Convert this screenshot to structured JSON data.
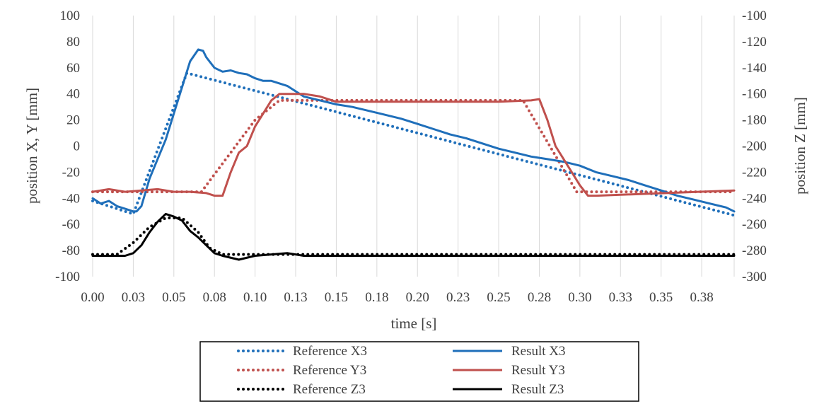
{
  "chart_data": {
    "type": "line",
    "xlabel": "time [s]",
    "ylabel_left": "position X, Y [mm]",
    "ylabel_right": "position Z [mm]",
    "xlim": [
      0,
      0.395
    ],
    "ylim_left": [
      -100,
      100
    ],
    "ylim_right": [
      -300,
      -100
    ],
    "grid": "vertical",
    "legend_placement": "bottom",
    "x_tick_values": [
      0,
      0.025,
      0.05,
      0.075,
      0.1,
      0.125,
      0.15,
      0.175,
      0.2,
      0.225,
      0.25,
      0.275,
      0.3,
      0.325,
      0.35,
      0.375
    ],
    "x_tick_labels": [
      "0.00",
      "0.03",
      "0.05",
      "0.08",
      "0.10",
      "0.13",
      "0.15",
      "0.18",
      "0.20",
      "0.23",
      "0.25",
      "0.28",
      "0.30",
      "0.33",
      "0.35",
      "0.38"
    ],
    "y_left_ticks": [
      -100,
      -80,
      -60,
      -40,
      -20,
      0,
      20,
      40,
      60,
      80,
      100
    ],
    "y_left_tick_labels": [
      "-100",
      "-80",
      "-60",
      "-40",
      "-20",
      "0",
      "20",
      "40",
      "60",
      "80",
      "100"
    ],
    "y_right_ticks": [
      -300,
      -280,
      -260,
      -240,
      -220,
      -200,
      -180,
      -160,
      -140,
      -120,
      -100
    ],
    "y_right_tick_labels": [
      "-300",
      "-280",
      "-260",
      "-240",
      "-220",
      "-200",
      "-180",
      "-160",
      "-140",
      "-120",
      "-100"
    ],
    "series": [
      {
        "name": "Reference X3",
        "axis": "left",
        "style": "dotted",
        "color": "#1f6fba",
        "x": [
          0,
          0.025,
          0.058,
          0.395
        ],
        "y": [
          -42,
          -52,
          56,
          -53
        ]
      },
      {
        "name": "Result X3",
        "axis": "left",
        "style": "solid",
        "color": "#1f6fba",
        "x": [
          0,
          0.005,
          0.01,
          0.015,
          0.02,
          0.025,
          0.027,
          0.03,
          0.035,
          0.04,
          0.045,
          0.05,
          0.055,
          0.06,
          0.065,
          0.068,
          0.07,
          0.075,
          0.08,
          0.085,
          0.09,
          0.095,
          0.1,
          0.105,
          0.11,
          0.115,
          0.12,
          0.125,
          0.13,
          0.14,
          0.15,
          0.16,
          0.17,
          0.18,
          0.19,
          0.2,
          0.21,
          0.22,
          0.23,
          0.24,
          0.25,
          0.26,
          0.27,
          0.28,
          0.29,
          0.3,
          0.31,
          0.32,
          0.33,
          0.34,
          0.35,
          0.36,
          0.37,
          0.38,
          0.39,
          0.395
        ],
        "y": [
          -40,
          -44,
          -42,
          -46,
          -48,
          -50,
          -50,
          -46,
          -25,
          -10,
          5,
          25,
          45,
          65,
          74,
          73,
          68,
          60,
          57,
          58,
          56,
          55,
          52,
          50,
          50,
          48,
          46,
          42,
          38,
          35,
          32,
          30,
          27,
          24,
          21,
          17,
          13,
          9,
          6,
          2,
          -2,
          -5,
          -8,
          -10,
          -12,
          -15,
          -20,
          -23,
          -26,
          -30,
          -34,
          -38,
          -41,
          -44,
          -47,
          -50
        ]
      },
      {
        "name": "Reference Y3",
        "axis": "left",
        "style": "dotted",
        "color": "#c0504d",
        "x": [
          0,
          0.067,
          0.1,
          0.115,
          0.265,
          0.298,
          0.395
        ],
        "y": [
          -35,
          -35,
          20,
          35,
          35,
          -35,
          -35
        ]
      },
      {
        "name": "Result Y3",
        "axis": "left",
        "style": "solid",
        "color": "#c0504d",
        "x": [
          0,
          0.01,
          0.02,
          0.03,
          0.04,
          0.05,
          0.06,
          0.07,
          0.075,
          0.08,
          0.085,
          0.09,
          0.095,
          0.1,
          0.105,
          0.11,
          0.115,
          0.12,
          0.13,
          0.14,
          0.15,
          0.2,
          0.25,
          0.27,
          0.275,
          0.28,
          0.285,
          0.29,
          0.3,
          0.305,
          0.31,
          0.395
        ],
        "y": [
          -35,
          -33,
          -35,
          -34,
          -33,
          -35,
          -35,
          -36,
          -38,
          -38,
          -20,
          -5,
          0,
          15,
          25,
          35,
          40,
          40,
          40,
          38,
          34,
          34,
          34,
          35,
          36,
          20,
          0,
          -10,
          -30,
          -38,
          -38,
          -34
        ]
      },
      {
        "name": "Reference Z3",
        "axis": "right",
        "style": "dotted",
        "color": "#000000",
        "x": [
          0,
          0.015,
          0.025,
          0.035,
          0.045,
          0.055,
          0.065,
          0.072,
          0.08,
          0.395
        ],
        "y": [
          -283,
          -283,
          -274,
          -262,
          -255,
          -255,
          -266,
          -278,
          -283,
          -283
        ]
      },
      {
        "name": "Result Z3",
        "axis": "right",
        "style": "solid",
        "color": "#000000",
        "x": [
          0,
          0.02,
          0.025,
          0.03,
          0.035,
          0.04,
          0.045,
          0.05,
          0.055,
          0.06,
          0.065,
          0.07,
          0.075,
          0.08,
          0.09,
          0.1,
          0.12,
          0.13,
          0.395
        ],
        "y": [
          -284,
          -284,
          -282,
          -276,
          -266,
          -258,
          -252,
          -254,
          -257,
          -265,
          -270,
          -276,
          -282,
          -284,
          -287,
          -284,
          -282,
          -284,
          -284
        ]
      }
    ]
  }
}
